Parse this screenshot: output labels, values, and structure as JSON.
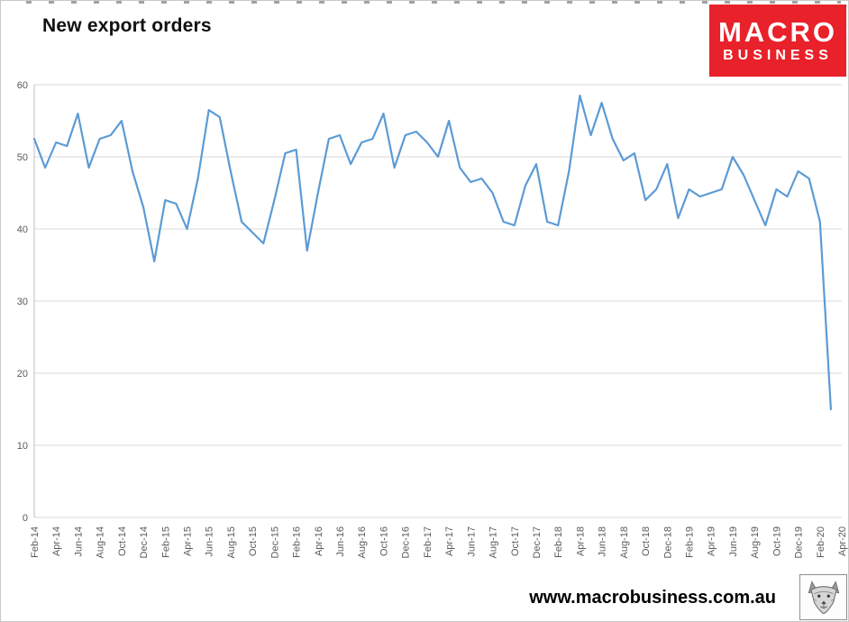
{
  "header": {
    "title": "New export orders"
  },
  "logo": {
    "line1": "MACRO",
    "line2": "BUSINESS",
    "bg_color": "#E8212A",
    "text_color": "#FFFFFF"
  },
  "footer": {
    "website": "www.macrobusiness.com.au"
  },
  "chart_data": {
    "type": "line",
    "title": "New export orders",
    "series_name": "New export orders",
    "x_monthly_start": "Feb-14",
    "x_monthly_end": "Mar-20",
    "x_tick_labels": [
      "Feb-14",
      "Apr-14",
      "Jun-14",
      "Aug-14",
      "Oct-14",
      "Dec-14",
      "Feb-15",
      "Apr-15",
      "Jun-15",
      "Aug-15",
      "Oct-15",
      "Dec-15",
      "Feb-16",
      "Apr-16",
      "Jun-16",
      "Aug-16",
      "Oct-16",
      "Dec-16",
      "Feb-17",
      "Apr-17",
      "Jun-17",
      "Aug-17",
      "Oct-17",
      "Dec-17",
      "Feb-18",
      "Apr-18",
      "Jun-18",
      "Aug-18",
      "Oct-18",
      "Dec-18",
      "Feb-19",
      "Apr-19",
      "Jun-19",
      "Aug-19",
      "Oct-19",
      "Dec-19",
      "Feb-20",
      "Apr-20"
    ],
    "values": [
      52.5,
      48.5,
      52,
      51.5,
      56,
      48.5,
      52.5,
      53,
      55,
      48,
      43,
      35.5,
      44,
      43.5,
      40,
      47,
      56.5,
      55.5,
      48,
      41,
      39.5,
      38,
      44,
      50.5,
      51,
      37,
      45,
      52.5,
      53,
      49,
      52,
      52.5,
      56,
      48.5,
      53,
      53.5,
      52,
      50,
      55,
      48.5,
      46.5,
      47,
      45,
      41,
      40.5,
      46,
      49,
      41,
      40.5,
      48,
      58.5,
      53,
      57.5,
      52.5,
      49.5,
      50.5,
      44,
      45.5,
      49,
      41.5,
      45.5,
      44.5,
      45,
      45.5,
      50,
      47.5,
      44,
      40.5,
      45.5,
      44.5,
      48,
      47,
      41,
      15
    ],
    "y_ticks": [
      0,
      10,
      20,
      30,
      40,
      50,
      60
    ],
    "ylim": [
      0,
      60
    ],
    "grid": true,
    "legend": "none",
    "line_color": "#5B9BD5",
    "grid_color": "#D9D9D9",
    "axis_color": "#BFBFBF",
    "tick_label_color": "#595959"
  }
}
